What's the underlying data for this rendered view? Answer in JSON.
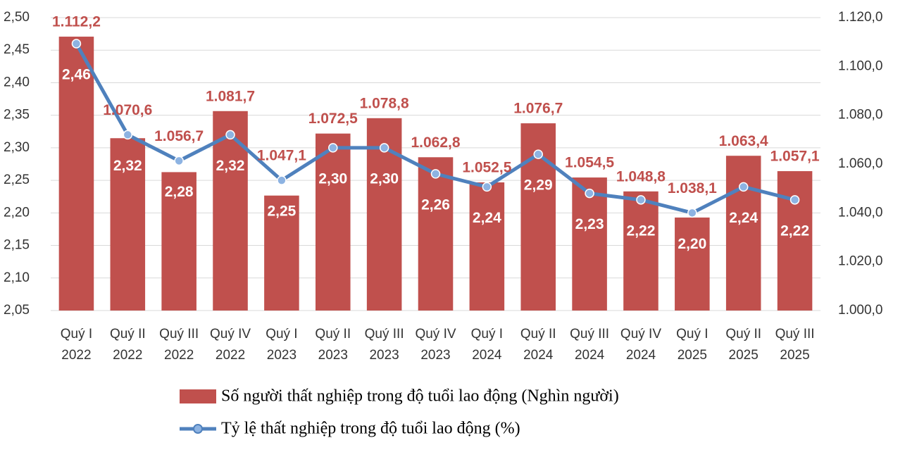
{
  "chart_data": {
    "type": "bar-line",
    "categories": [
      [
        "Quý I",
        "2022"
      ],
      [
        "Quý II",
        "2022"
      ],
      [
        "Quý III",
        "2022"
      ],
      [
        "Quý IV",
        "2022"
      ],
      [
        "Quý I",
        "2023"
      ],
      [
        "Quý II",
        "2023"
      ],
      [
        "Quý III",
        "2023"
      ],
      [
        "Quý IV",
        "2023"
      ],
      [
        "Quý I",
        "2024"
      ],
      [
        "Quý II",
        "2024"
      ],
      [
        "Quý III",
        "2024"
      ],
      [
        "Quý IV",
        "2024"
      ],
      [
        "Quý I",
        "2025"
      ],
      [
        "Quý II",
        "2025"
      ],
      [
        "Quý III",
        "2025"
      ]
    ],
    "series": [
      {
        "name": "Số người thất nghiệp trong độ tuổi lao động (Nghìn người)",
        "type": "bar",
        "axis": "y2",
        "color": "#c0504d",
        "values": [
          1112.2,
          1070.6,
          1056.7,
          1081.7,
          1047.1,
          1072.5,
          1078.8,
          1062.8,
          1052.5,
          1076.7,
          1054.5,
          1048.8,
          1038.1,
          1063.4,
          1057.1
        ],
        "value_labels": [
          "1.112,2",
          "1.070,6",
          "1.056,7",
          "1.081,7",
          "1.047,1",
          "1.072,5",
          "1.078,8",
          "1.062,8",
          "1.052,5",
          "1.076,7",
          "1.054,5",
          "1.048,8",
          "1.038,1",
          "1.063,4",
          "1.057,1"
        ]
      },
      {
        "name": "Tỷ lệ thất nghiệp trong độ tuổi lao động (%)",
        "type": "line",
        "axis": "y",
        "color": "#4f81bd",
        "values": [
          2.46,
          2.32,
          2.28,
          2.32,
          2.25,
          2.3,
          2.3,
          2.26,
          2.24,
          2.29,
          2.23,
          2.22,
          2.2,
          2.24,
          2.22
        ],
        "value_labels": [
          "2,46",
          "2,32",
          "2,28",
          "2,32",
          "2,25",
          "2,30",
          "2,30",
          "2,26",
          "2,24",
          "2,29",
          "2,23",
          "2,22",
          "2,20",
          "2,24",
          "2,22"
        ]
      }
    ],
    "ylim": [
      2.05,
      2.5
    ],
    "yticks": [
      {
        "value": 2.05,
        "label": "2,05"
      },
      {
        "value": 2.1,
        "label": "2,10"
      },
      {
        "value": 2.15,
        "label": "2,15"
      },
      {
        "value": 2.2,
        "label": "2,20"
      },
      {
        "value": 2.25,
        "label": "2,25"
      },
      {
        "value": 2.3,
        "label": "2,30"
      },
      {
        "value": 2.35,
        "label": "2,35"
      },
      {
        "value": 2.4,
        "label": "2,40"
      },
      {
        "value": 2.45,
        "label": "2,45"
      },
      {
        "value": 2.5,
        "label": "2,50"
      }
    ],
    "y2lim": [
      1000,
      1120
    ],
    "y2ticks": [
      {
        "value": 1000,
        "label": "1.000,0"
      },
      {
        "value": 1020,
        "label": "1.020,0"
      },
      {
        "value": 1040,
        "label": "1.040,0"
      },
      {
        "value": 1060,
        "label": "1.060,0"
      },
      {
        "value": 1080,
        "label": "1.080,0"
      },
      {
        "value": 1100,
        "label": "1.100,0"
      },
      {
        "value": 1120,
        "label": "1.120,0"
      }
    ],
    "grid": true
  }
}
